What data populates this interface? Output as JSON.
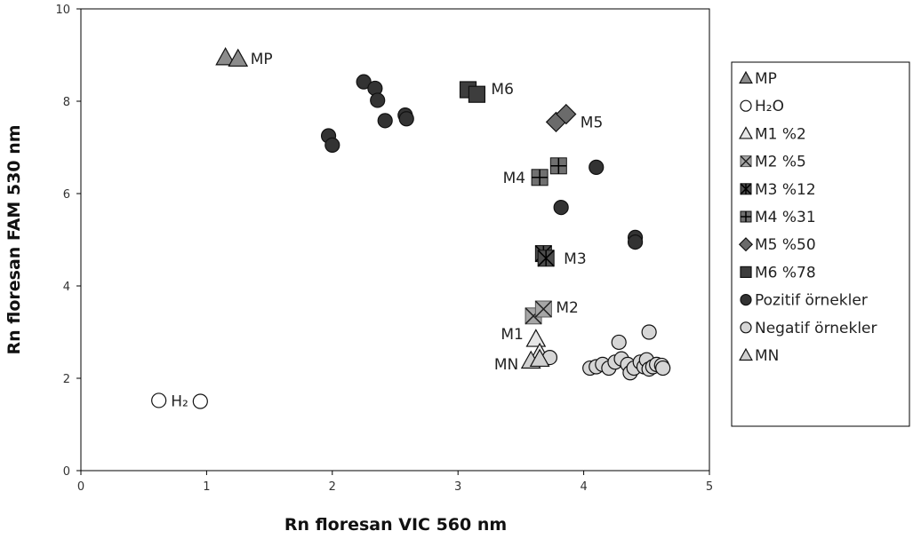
{
  "chart_data": {
    "type": "scatter",
    "xlabel": "Rn floresan VIC 560 nm",
    "ylabel": "Rn floresan FAM 530 nm",
    "xlim": [
      0,
      5
    ],
    "ylim": [
      0,
      10
    ],
    "xticks": [
      "0",
      "1",
      "2",
      "3",
      "4",
      "5"
    ],
    "yticks": [
      "0",
      "2",
      "4",
      "6",
      "8",
      "10"
    ],
    "grid": false,
    "legend_position": "right",
    "series": [
      {
        "name": "MP",
        "legend": "MP",
        "marker": "triangle",
        "fill": "#8c8c8c",
        "label": "MP",
        "points": [
          [
            1.15,
            8.95
          ],
          [
            1.25,
            8.92
          ]
        ]
      },
      {
        "name": "H2O",
        "legend": "H₂O",
        "marker": "circle",
        "fill": "#ffffff",
        "label": "H₂O",
        "points": [
          [
            0.62,
            1.52
          ],
          [
            0.95,
            1.5
          ]
        ]
      },
      {
        "name": "M1 %2",
        "legend": "M1 %2",
        "marker": "triangle",
        "fill": "#e6e6e6",
        "label": "M1",
        "points": [
          [
            3.62,
            2.85
          ],
          [
            3.65,
            2.55
          ]
        ]
      },
      {
        "name": "M2 %5",
        "legend": "M2 %5",
        "marker": "xsquare",
        "fill": "#a6a6a6",
        "label": "M2",
        "points": [
          [
            3.6,
            3.35
          ],
          [
            3.68,
            3.5
          ]
        ]
      },
      {
        "name": "M3 %12",
        "legend": "M3 %12",
        "marker": "asterisk-square",
        "fill": "#4d4d4d",
        "label": "M3",
        "points": [
          [
            3.68,
            4.7
          ],
          [
            3.7,
            4.6
          ]
        ]
      },
      {
        "name": "M4 %31",
        "legend": "M4 %31",
        "marker": "plus-square",
        "fill": "#707070",
        "label": "M4",
        "points": [
          [
            3.65,
            6.35
          ],
          [
            3.8,
            6.6
          ]
        ]
      },
      {
        "name": "M5 %50",
        "legend": "M5 %50",
        "marker": "diamond",
        "fill": "#6b6b6b",
        "label": "M5",
        "points": [
          [
            3.78,
            7.55
          ],
          [
            3.86,
            7.72
          ]
        ]
      },
      {
        "name": "M6 %78",
        "legend": "M6 %78",
        "marker": "square",
        "fill": "#3d3d3d",
        "label": "M6",
        "points": [
          [
            3.08,
            8.25
          ],
          [
            3.15,
            8.15
          ]
        ]
      },
      {
        "name": "Pozitif örnekler",
        "legend": "Pozitif örnekler",
        "marker": "circle",
        "fill": "#333333",
        "label": "",
        "points": [
          [
            1.97,
            7.25
          ],
          [
            2.0,
            7.05
          ],
          [
            2.25,
            8.42
          ],
          [
            2.34,
            8.28
          ],
          [
            2.36,
            8.02
          ],
          [
            2.42,
            7.58
          ],
          [
            2.58,
            7.7
          ],
          [
            2.59,
            7.62
          ],
          [
            4.1,
            6.57
          ],
          [
            3.82,
            5.7
          ],
          [
            4.41,
            5.05
          ],
          [
            4.41,
            4.95
          ]
        ]
      },
      {
        "name": "Negatif örnekler",
        "legend": "Negatif örnekler",
        "marker": "circle",
        "fill": "#d6d6d6",
        "label": "",
        "points": [
          [
            3.73,
            2.45
          ],
          [
            4.05,
            2.22
          ],
          [
            4.1,
            2.25
          ],
          [
            4.15,
            2.3
          ],
          [
            4.2,
            2.22
          ],
          [
            4.25,
            2.35
          ],
          [
            4.28,
            2.78
          ],
          [
            4.3,
            2.42
          ],
          [
            4.35,
            2.3
          ],
          [
            4.37,
            2.12
          ],
          [
            4.4,
            2.22
          ],
          [
            4.45,
            2.35
          ],
          [
            4.48,
            2.25
          ],
          [
            4.5,
            2.4
          ],
          [
            4.52,
            2.2
          ],
          [
            4.52,
            3.0
          ],
          [
            4.55,
            2.25
          ],
          [
            4.58,
            2.3
          ],
          [
            4.62,
            2.28
          ],
          [
            4.63,
            2.22
          ]
        ]
      },
      {
        "name": "MN",
        "legend": "MN",
        "marker": "triangle",
        "fill": "#d0d0d0",
        "label": "MN",
        "points": [
          [
            3.58,
            2.38
          ],
          [
            3.65,
            2.42
          ]
        ]
      }
    ]
  }
}
